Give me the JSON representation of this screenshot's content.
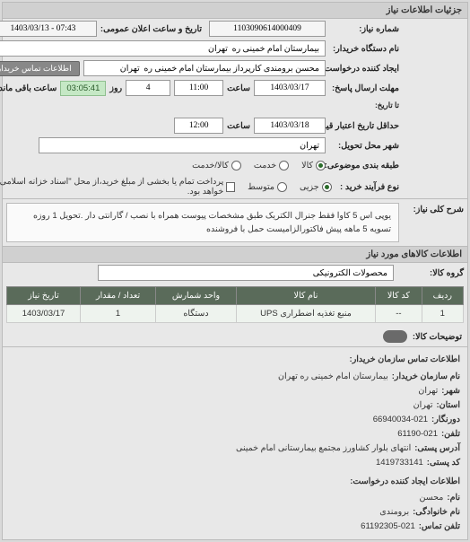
{
  "panel_title": "جزئیات اطلاعات نیاز",
  "row1": {
    "need_no_label": "شماره نیاز:",
    "need_no": "1103090614000409",
    "datetime_label": "تاریخ و ساعت اعلان عمومی:",
    "datetime": "07:43 - 1403/03/13"
  },
  "row2": {
    "buyer_label": "نام دستگاه خریدار:",
    "buyer": "بیمارستان امام خمینی ره  تهران"
  },
  "row3": {
    "requester_label": "ایجاد کننده درخواست:",
    "requester": "محسن برومندی کارپرداز بیمارستان امام خمینی ره  تهران",
    "contact_btn": "اطلاعات تماس خریدار"
  },
  "row4": {
    "deadline_label": "مهلت ارسال پاسخ:",
    "deadline_date": "1403/03/17",
    "time_label": "ساعت",
    "deadline_time": "11:00",
    "days_label": "روز",
    "days": "4",
    "remaining": "03:05:41",
    "remaining_label": "ساعت باقی مانده",
    "from_to": "تا تاریخ:"
  },
  "row5": {
    "validity_label": "حداقل تاریخ اعتبار قیمت: تا تاریخ:",
    "validity_date": "1403/03/18",
    "validity_time": "12:00"
  },
  "row6": {
    "city_label": "شهر محل تحویل:",
    "city": "تهران"
  },
  "row7": {
    "category_label": "طبقه بندی موضوعی:",
    "opts": [
      "کالا",
      "خدمت",
      "کالا/خدمت"
    ],
    "selected": 0
  },
  "row8": {
    "process_label": "نوع فرآیند خرید :",
    "opts": [
      "جزیی",
      "متوسط",
      "پرداخت تمام یا بخشی از مبلغ خرید،از محل \"اسناد خزانه اسلامی\" خواهد بود."
    ],
    "selected": 0
  },
  "row9": {
    "desc_label": "شرح کلی نیاز:",
    "desc": "یوپی اس 5 کاوا فقط جنرال الکتریک طبق مشخصات پیوست همراه با نصب / گارانتی دار .تحویل 1 روزه تسویه 5 ماهه پیش فاکتورالزامیست حمل با فروشنده"
  },
  "row10": {
    "group_label": "گروه کالا:",
    "group": "محصولات الکترونیکی"
  },
  "section2_title": "اطلاعات کالاهای مورد نیاز",
  "table": {
    "headers": [
      "ردیف",
      "کد کالا",
      "نام کالا",
      "واحد شمارش",
      "تعداد / مقدار",
      "تاریخ نیاز"
    ],
    "rows": [
      [
        "1",
        "--",
        "منبع تغذیه اضطراری UPS",
        "دستگاه",
        "1",
        "1403/03/17"
      ]
    ]
  },
  "notes": {
    "label": "توضیحات کالا:",
    "empty": "",
    "btn": ""
  },
  "org": {
    "hdr": "اطلاعات تماس سازمان خریدار:",
    "lines": [
      {
        "k": "نام سازمان خریدار:",
        "v": "بیمارستان امام خمینی ره تهران"
      },
      {
        "k": "شهر:",
        "v": "تهران"
      },
      {
        "k": "استان:",
        "v": "تهران"
      },
      {
        "k": "دورنگار:",
        "v": "66940034-021"
      },
      {
        "k": "تلفن:",
        "v": "61190-021"
      },
      {
        "k": "آدرس پستی:",
        "v": "انتهای بلوار کشاورز مجتمع بیمارستانی امام خمینی"
      },
      {
        "k": "کد پستی:",
        "v": "1419733141"
      }
    ],
    "hdr2": "اطلاعات ایجاد کننده درخواست:",
    "lines2": [
      {
        "k": "نام:",
        "v": "محسن"
      },
      {
        "k": "نام خانوادگی:",
        "v": "برومندی"
      },
      {
        "k": "تلفن تماس:",
        "v": "61192305-021"
      }
    ]
  }
}
